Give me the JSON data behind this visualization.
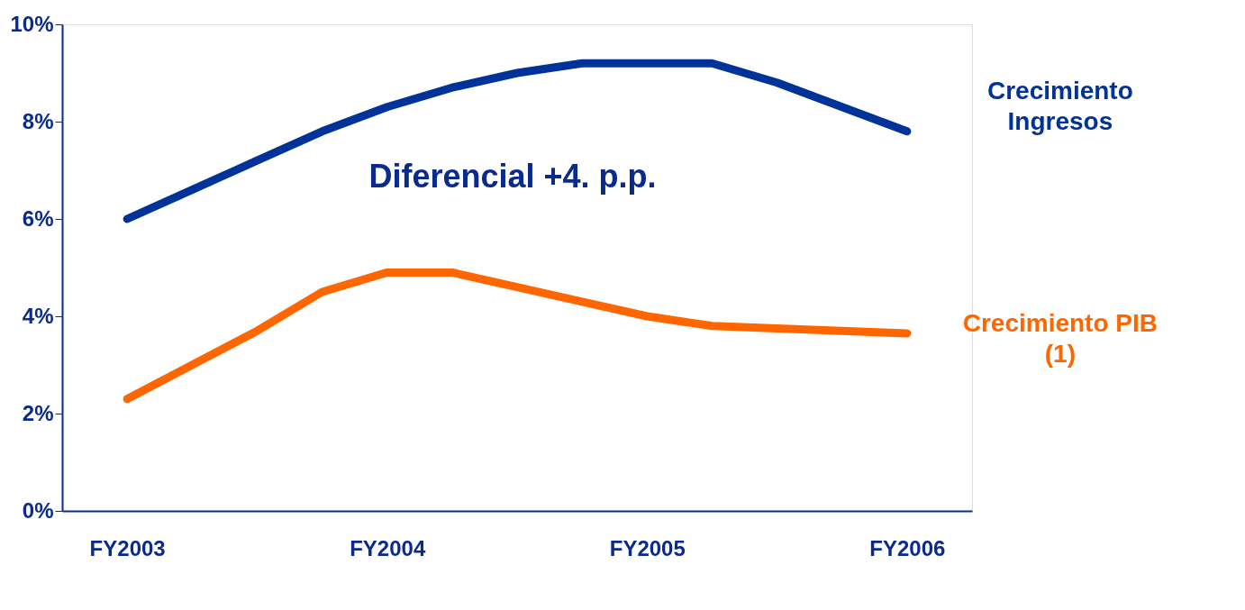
{
  "chart_data": {
    "type": "line",
    "categories": [
      "FY2003",
      null,
      null,
      null,
      "FY2004",
      null,
      null,
      null,
      "FY2005",
      null,
      null,
      null,
      "FY2006"
    ],
    "series": [
      {
        "name": "Crecimiento Ingresos",
        "color": "#003399",
        "values": [
          6.0,
          6.6,
          7.2,
          7.8,
          8.3,
          8.7,
          9.0,
          9.2,
          9.2,
          9.2,
          8.8,
          8.3,
          7.8
        ]
      },
      {
        "name": "Crecimiento PIB (1)",
        "color": "#ff6600",
        "values": [
          2.3,
          3.0,
          3.7,
          4.5,
          4.9,
          4.9,
          4.6,
          4.3,
          4.0,
          3.8,
          3.75,
          3.7,
          3.65
        ]
      }
    ],
    "ylim": [
      0,
      10
    ],
    "yticks": [
      {
        "value": 0,
        "label": "0%"
      },
      {
        "value": 2,
        "label": "2%"
      },
      {
        "value": 4,
        "label": "4%"
      },
      {
        "value": 6,
        "label": "6%"
      },
      {
        "value": 8,
        "label": "8%"
      },
      {
        "value": 10,
        "label": "10%"
      }
    ],
    "grid": false,
    "marker": "none",
    "line_style": "solid",
    "annotations": [
      "Diferencial +4. p.p."
    ]
  }
}
